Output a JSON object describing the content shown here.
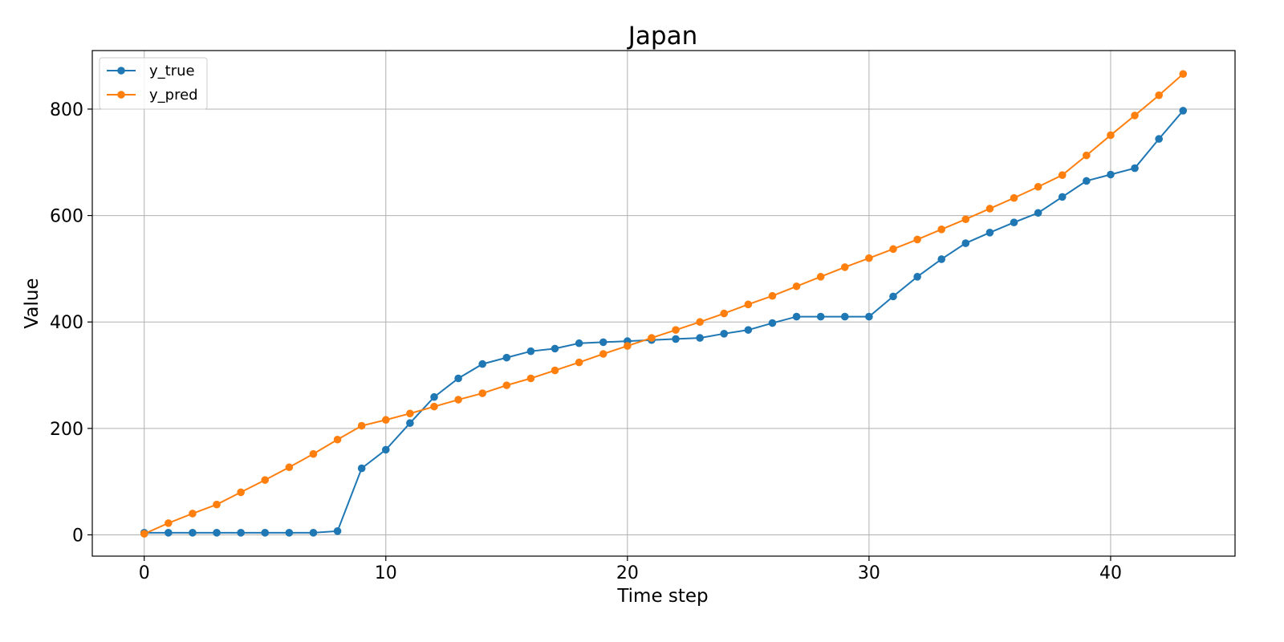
{
  "chart_data": {
    "type": "line",
    "title": "Japan",
    "xlabel": "Time step",
    "ylabel": "Value",
    "xlim": [
      -2.15,
      45.15
    ],
    "ylim": [
      -40,
      910
    ],
    "x_ticks": [
      0,
      10,
      20,
      30,
      40
    ],
    "y_ticks": [
      0,
      200,
      400,
      600,
      800
    ],
    "grid": true,
    "legend_position": "top-left",
    "x": [
      0,
      1,
      2,
      3,
      4,
      5,
      6,
      7,
      8,
      9,
      10,
      11,
      12,
      13,
      14,
      15,
      16,
      17,
      18,
      19,
      20,
      21,
      22,
      23,
      24,
      25,
      26,
      27,
      28,
      29,
      30,
      31,
      32,
      33,
      34,
      35,
      36,
      37,
      38,
      39,
      40,
      41,
      42,
      43
    ],
    "series": [
      {
        "name": "y_true",
        "color": "#1f77b4",
        "values": [
          4,
          4,
          4,
          4,
          4,
          4,
          4,
          4,
          7,
          125,
          160,
          210,
          259,
          294,
          321,
          333,
          345,
          350,
          360,
          362,
          364,
          366,
          368,
          370,
          378,
          385,
          398,
          410,
          410,
          410,
          410,
          448,
          485,
          518,
          548,
          568,
          587,
          605,
          635,
          665,
          677,
          689,
          744,
          797
        ]
      },
      {
        "name": "y_pred",
        "color": "#ff7f0e",
        "values": [
          2,
          22,
          40,
          57,
          80,
          103,
          127,
          152,
          179,
          205,
          216,
          228,
          241,
          254,
          266,
          281,
          294,
          309,
          324,
          340,
          355,
          370,
          385,
          400,
          416,
          433,
          449,
          467,
          485,
          503,
          520,
          537,
          555,
          574,
          593,
          613,
          633,
          654,
          676,
          713,
          751,
          788,
          826,
          866
        ]
      }
    ]
  }
}
